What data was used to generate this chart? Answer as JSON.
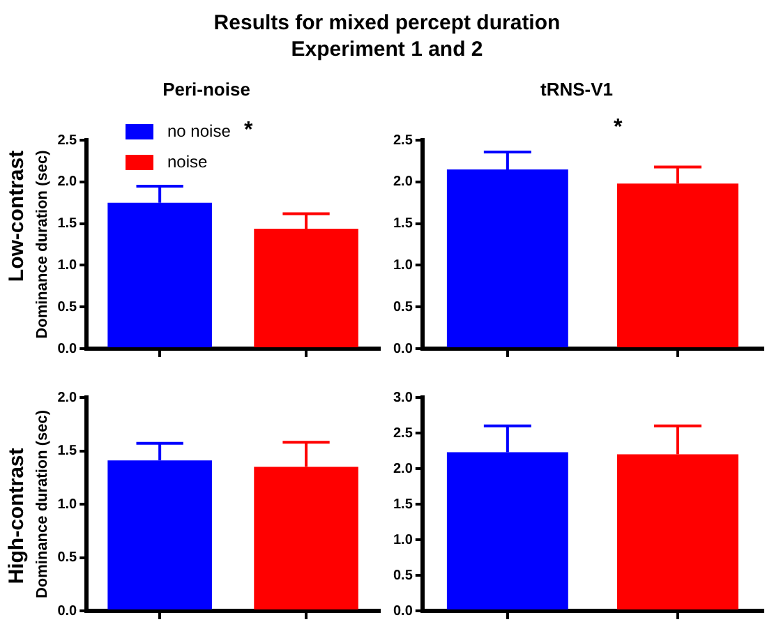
{
  "chart_data": [
    {
      "type": "bar",
      "title": "Peri-noise",
      "ylabel": "Dominance duration (sec)",
      "annotations": [
        "Results for mixed percept duration",
        "Experiment 1 and 2",
        "Low-contrast",
        "*"
      ],
      "categories": [
        null,
        null
      ],
      "series": [
        {
          "name": "no noise",
          "color": "#0000ff",
          "values": [
            1.75,
            null
          ],
          "errors": [
            [
              1.75,
              1.95
            ],
            null
          ]
        },
        {
          "name": "noise",
          "color": "#ff0000",
          "values": [
            null,
            1.44
          ],
          "errors": [
            null,
            [
              1.44,
              1.62
            ]
          ]
        }
      ],
      "ylim": [
        0,
        2.5
      ],
      "yticks": [
        {
          "value": 0,
          "label": "0.0"
        },
        0.5,
        {
          "value": 1,
          "label": "1.0"
        },
        1.5,
        {
          "value": 2,
          "label": "2.0"
        },
        2.5
      ],
      "grid": false,
      "legend": "top left"
    },
    {
      "type": "bar",
      "title": "tRNS-V1",
      "annotations": [
        "*"
      ],
      "categories": [
        null,
        null
      ],
      "series": [
        {
          "color": "#0000ff",
          "values": [
            2.15,
            null
          ],
          "errors": [
            [
              2.15,
              2.36
            ],
            null
          ]
        },
        {
          "color": "#ff0000",
          "values": [
            null,
            1.98
          ],
          "errors": [
            null,
            [
              1.98,
              2.18
            ]
          ]
        }
      ],
      "ylim": [
        0,
        2.5
      ],
      "yticks": [
        {
          "value": 0,
          "label": "0.0"
        },
        0.5,
        {
          "value": 1,
          "label": "1.0"
        },
        1.5,
        {
          "value": 2,
          "label": "2.0"
        },
        2.5
      ],
      "grid": false,
      "legend": false
    },
    {
      "type": "bar",
      "ylabel": "Dominance duration (sec)",
      "annotations": [
        "High-contrast"
      ],
      "categories": [
        null,
        null
      ],
      "series": [
        {
          "color": "#0000ff",
          "values": [
            1.41,
            null
          ],
          "errors": [
            [
              1.41,
              1.57
            ],
            null
          ]
        },
        {
          "color": "#ff0000",
          "values": [
            null,
            1.35
          ],
          "errors": [
            null,
            [
              1.35,
              1.58
            ]
          ]
        }
      ],
      "ylim": [
        0,
        2
      ],
      "yticks": [
        {
          "value": 0,
          "label": "0.0"
        },
        0.5,
        {
          "value": 1,
          "label": "1.0"
        },
        1.5,
        {
          "value": 2,
          "label": "2.0"
        }
      ],
      "grid": false,
      "legend": false
    },
    {
      "type": "bar",
      "categories": [
        null,
        null
      ],
      "series": [
        {
          "color": "#0000ff",
          "values": [
            2.23,
            null
          ],
          "errors": [
            [
              2.23,
              2.6
            ],
            null
          ]
        },
        {
          "color": "#ff0000",
          "values": [
            null,
            2.2
          ],
          "errors": [
            null,
            [
              2.2,
              2.6
            ]
          ]
        }
      ],
      "ylim": [
        0,
        3
      ],
      "yticks": [
        {
          "value": 0,
          "label": "0.0"
        },
        0.5,
        {
          "value": 1,
          "label": "1.0"
        },
        1.5,
        {
          "value": 2,
          "label": "2.0"
        },
        2.5,
        {
          "value": 3,
          "label": "3.0"
        }
      ],
      "grid": false,
      "legend": false
    }
  ]
}
